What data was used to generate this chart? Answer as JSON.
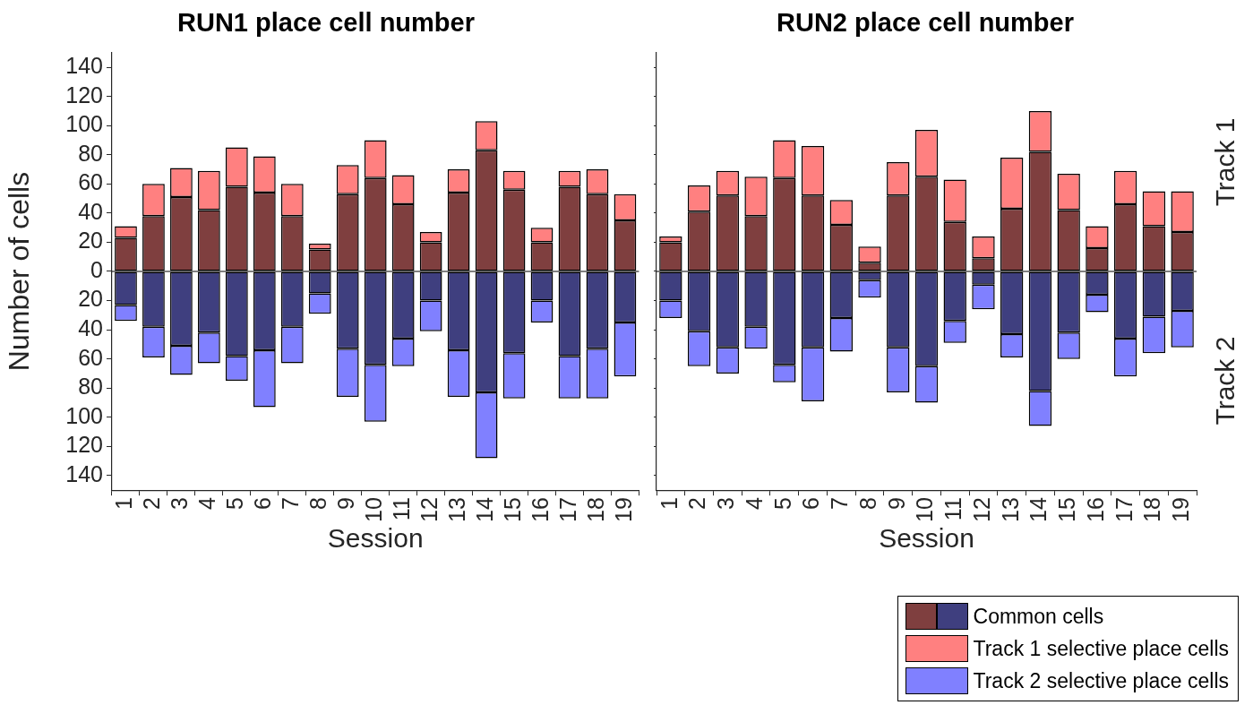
{
  "chart_data": [
    {
      "type": "bar",
      "title": "RUN1 place cell number",
      "xlabel": "Session",
      "ylabel": "Number of cells",
      "stacked": true,
      "categories": [
        "1",
        "2",
        "3",
        "4",
        "5",
        "6",
        "7",
        "8",
        "9",
        "10",
        "11",
        "12",
        "13",
        "14",
        "15",
        "16",
        "17",
        "18",
        "19"
      ],
      "series": [
        {
          "color": "#7f3f3f",
          "values": [
            23,
            38,
            51,
            42,
            58,
            54,
            38,
            15,
            53,
            64,
            46,
            20,
            54,
            83,
            56,
            20,
            58,
            53,
            35
          ]
        },
        {
          "color": "#3f3f7f",
          "values": [
            -23,
            -38,
            -51,
            -42,
            -58,
            -54,
            -38,
            -15,
            -53,
            -64,
            -46,
            -20,
            -54,
            -83,
            -56,
            -20,
            -58,
            -53,
            -35
          ]
        },
        {
          "color": "#ff8080",
          "values": [
            8,
            22,
            20,
            27,
            27,
            25,
            22,
            4,
            20,
            26,
            20,
            7,
            16,
            20,
            13,
            10,
            11,
            17,
            18
          ]
        },
        {
          "color": "#8080ff",
          "values": [
            -11,
            -21,
            -20,
            -21,
            -17,
            -39,
            -25,
            -14,
            -33,
            -39,
            -19,
            -21,
            -32,
            -45,
            -31,
            -15,
            -29,
            -34,
            -37
          ]
        }
      ],
      "ylim": [
        -150,
        150
      ],
      "yticks": [
        {
          "value": -140,
          "label": "140"
        },
        {
          "value": -120,
          "label": "120"
        },
        {
          "value": -100,
          "label": "100"
        },
        {
          "value": -80,
          "label": "80"
        },
        {
          "value": -60,
          "label": "60"
        },
        {
          "value": -40,
          "label": "40"
        },
        {
          "value": -20,
          "label": "20"
        },
        0,
        20,
        40,
        60,
        80,
        100,
        120,
        140
      ],
      "ref_lines": [
        {
          "axis": "y",
          "value": 0,
          "color": "#000000"
        }
      ]
    },
    {
      "type": "bar",
      "title": "RUN2 place cell number",
      "xlabel": "Session",
      "stacked": true,
      "tick_labels": "x",
      "legend": "bottom right",
      "categories": [
        "1",
        "2",
        "3",
        "4",
        "5",
        "6",
        "7",
        "8",
        "9",
        "10",
        "11",
        "12",
        "13",
        "14",
        "15",
        "16",
        "17",
        "18",
        "19"
      ],
      "series": [
        {
          "name": "Common cells",
          "color": "#7f3f3f",
          "values": [
            20,
            41,
            52,
            38,
            64,
            52,
            32,
            6,
            52,
            65,
            34,
            9,
            43,
            82,
            42,
            16,
            46,
            31,
            27
          ]
        },
        {
          "color": "#3f3f7f",
          "values": [
            -20,
            -41,
            -52,
            -38,
            -64,
            -52,
            -32,
            -6,
            -52,
            -65,
            -34,
            -9,
            -43,
            -82,
            -42,
            -16,
            -46,
            -31,
            -27
          ]
        },
        {
          "name": "Track 1 selective place cells",
          "color": "#ff8080",
          "values": [
            4,
            18,
            17,
            27,
            26,
            34,
            17,
            11,
            23,
            32,
            29,
            15,
            35,
            28,
            25,
            15,
            23,
            24,
            28
          ]
        },
        {
          "name": "Track 2 selective place cells",
          "color": "#8080ff",
          "values": [
            -12,
            -24,
            -18,
            -15,
            -12,
            -37,
            -23,
            -12,
            -31,
            -25,
            -15,
            -17,
            -16,
            -24,
            -18,
            -12,
            -26,
            -25,
            -25
          ]
        }
      ],
      "ylim": [
        -150,
        150
      ],
      "yticks": [
        {
          "value": -140,
          "label": null
        },
        {
          "value": -120,
          "label": null
        },
        {
          "value": -100,
          "label": null
        },
        {
          "value": -80,
          "label": null
        },
        {
          "value": -60,
          "label": null
        },
        {
          "value": -40,
          "label": null
        },
        {
          "value": -20,
          "label": null
        },
        {
          "value": 0,
          "label": null
        },
        {
          "value": 20,
          "label": null
        },
        {
          "value": 40,
          "label": null
        },
        {
          "value": 60,
          "label": null
        },
        {
          "value": 80,
          "label": null
        },
        {
          "value": 100,
          "label": null
        },
        {
          "value": 120,
          "label": null
        },
        {
          "value": 140,
          "label": null
        }
      ],
      "ref_lines": [
        {
          "axis": "y",
          "value": 0,
          "color": "#000000"
        }
      ],
      "annotations": [
        "Track 1",
        "Track 2"
      ]
    }
  ]
}
